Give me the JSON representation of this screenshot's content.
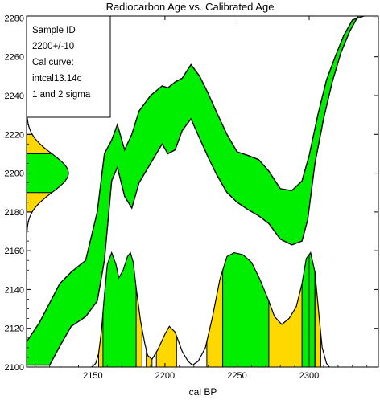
{
  "chart_data": {
    "type": "area",
    "title": "Radiocarbon Age vs. Calibrated Age",
    "xlabel": "cal BP",
    "ylabel": "",
    "xlim": [
      2104,
      2348
    ],
    "ylim": [
      2100,
      2281
    ],
    "x_ticks": [
      2150,
      2200,
      2250,
      2300
    ],
    "y_ticks": [
      2100,
      2120,
      2140,
      2160,
      2180,
      2200,
      2220,
      2240,
      2260,
      2280
    ],
    "grid": false,
    "legend_position": "top-left",
    "info_box": [
      "Sample ID",
      "2200+/-10",
      "Cal curve:",
      "intcal13.14c",
      "1 and 2 sigma"
    ],
    "colors": {
      "two_sigma": "#00ee00",
      "one_sigma": "#ffd800",
      "line": "#000000"
    },
    "calibration_band": {
      "upper": [
        [
          2104,
          2113
        ],
        [
          2113,
          2123
        ],
        [
          2120,
          2133
        ],
        [
          2127,
          2143
        ],
        [
          2135,
          2149
        ],
        [
          2145,
          2155
        ],
        [
          2153,
          2180
        ],
        [
          2158,
          2210
        ],
        [
          2163,
          2217
        ],
        [
          2167,
          2225
        ],
        [
          2172,
          2212
        ],
        [
          2177,
          2220
        ],
        [
          2182,
          2232
        ],
        [
          2190,
          2240
        ],
        [
          2198,
          2245
        ],
        [
          2202,
          2244
        ],
        [
          2207,
          2247
        ],
        [
          2212,
          2249
        ],
        [
          2218,
          2256
        ],
        [
          2224,
          2250
        ],
        [
          2230,
          2241
        ],
        [
          2236,
          2231
        ],
        [
          2243,
          2220
        ],
        [
          2250,
          2211
        ],
        [
          2258,
          2209
        ],
        [
          2265,
          2207
        ],
        [
          2272,
          2201
        ],
        [
          2280,
          2192
        ],
        [
          2288,
          2191
        ],
        [
          2295,
          2196
        ],
        [
          2300,
          2209
        ],
        [
          2306,
          2230
        ],
        [
          2312,
          2248
        ],
        [
          2318,
          2260
        ],
        [
          2324,
          2271
        ],
        [
          2330,
          2279
        ],
        [
          2338,
          2281
        ]
      ],
      "lower": [
        [
          2104,
          2101
        ],
        [
          2113,
          2101
        ],
        [
          2120,
          2101
        ],
        [
          2128,
          2112
        ],
        [
          2135,
          2121
        ],
        [
          2145,
          2126
        ],
        [
          2153,
          2134
        ],
        [
          2158,
          2155
        ],
        [
          2163,
          2196
        ],
        [
          2167,
          2203
        ],
        [
          2172,
          2188
        ],
        [
          2177,
          2182
        ],
        [
          2182,
          2195
        ],
        [
          2190,
          2205
        ],
        [
          2198,
          2215
        ],
        [
          2202,
          2210
        ],
        [
          2207,
          2212
        ],
        [
          2212,
          2222
        ],
        [
          2218,
          2228
        ],
        [
          2224,
          2218
        ],
        [
          2230,
          2208
        ],
        [
          2236,
          2199
        ],
        [
          2243,
          2190
        ],
        [
          2250,
          2185
        ],
        [
          2258,
          2181
        ],
        [
          2265,
          2178
        ],
        [
          2272,
          2174
        ],
        [
          2280,
          2166
        ],
        [
          2288,
          2163
        ],
        [
          2295,
          2165
        ],
        [
          2299,
          2176
        ],
        [
          2304,
          2205
        ],
        [
          2310,
          2228
        ],
        [
          2316,
          2247
        ],
        [
          2322,
          2262
        ],
        [
          2328,
          2273
        ],
        [
          2334,
          2281
        ]
      ]
    },
    "radiocarbon_distribution": {
      "mean": 2200,
      "sigma": 10,
      "one_sigma_range": [
        2190,
        2210
      ],
      "two_sigma_range": [
        2180,
        2220
      ]
    },
    "calibrated_distribution": {
      "curve": [
        [
          2149,
          2100
        ],
        [
          2150,
          2100.5
        ],
        [
          2152,
          2102
        ],
        [
          2154,
          2107
        ],
        [
          2156,
          2119
        ],
        [
          2158,
          2137
        ],
        [
          2160,
          2153
        ],
        [
          2163,
          2159
        ],
        [
          2166,
          2153
        ],
        [
          2168,
          2146
        ],
        [
          2171,
          2150
        ],
        [
          2174,
          2157
        ],
        [
          2176,
          2159
        ],
        [
          2178,
          2154
        ],
        [
          2180,
          2141
        ],
        [
          2183,
          2124
        ],
        [
          2186,
          2112
        ],
        [
          2188,
          2106
        ],
        [
          2191,
          2104
        ],
        [
          2195,
          2109
        ],
        [
          2200,
          2117
        ],
        [
          2203,
          2121
        ],
        [
          2207,
          2118
        ],
        [
          2212,
          2108
        ],
        [
          2216,
          2103
        ],
        [
          2219,
          2101
        ],
        [
          2223,
          2103
        ],
        [
          2228,
          2110
        ],
        [
          2233,
          2126
        ],
        [
          2238,
          2145
        ],
        [
          2243,
          2157
        ],
        [
          2248,
          2159
        ],
        [
          2254,
          2158
        ],
        [
          2260,
          2154
        ],
        [
          2266,
          2145
        ],
        [
          2272,
          2134
        ],
        [
          2276,
          2126
        ],
        [
          2281,
          2122
        ],
        [
          2286,
          2125
        ],
        [
          2291,
          2131
        ],
        [
          2295,
          2143
        ],
        [
          2298,
          2156
        ],
        [
          2301,
          2159
        ],
        [
          2304,
          2149
        ],
        [
          2307,
          2125
        ],
        [
          2309,
          2110
        ],
        [
          2312,
          2102
        ],
        [
          2314,
          2100
        ]
      ],
      "two_sigma_ranges": [
        [
          2154,
          2184
        ],
        [
          2187,
          2191
        ],
        [
          2194,
          2208
        ],
        [
          2229,
          2300
        ],
        [
          2304,
          2308
        ]
      ],
      "one_sigma_ranges": [
        [
          2157,
          2180
        ],
        [
          2240,
          2272
        ],
        [
          2295,
          2304
        ]
      ]
    }
  }
}
